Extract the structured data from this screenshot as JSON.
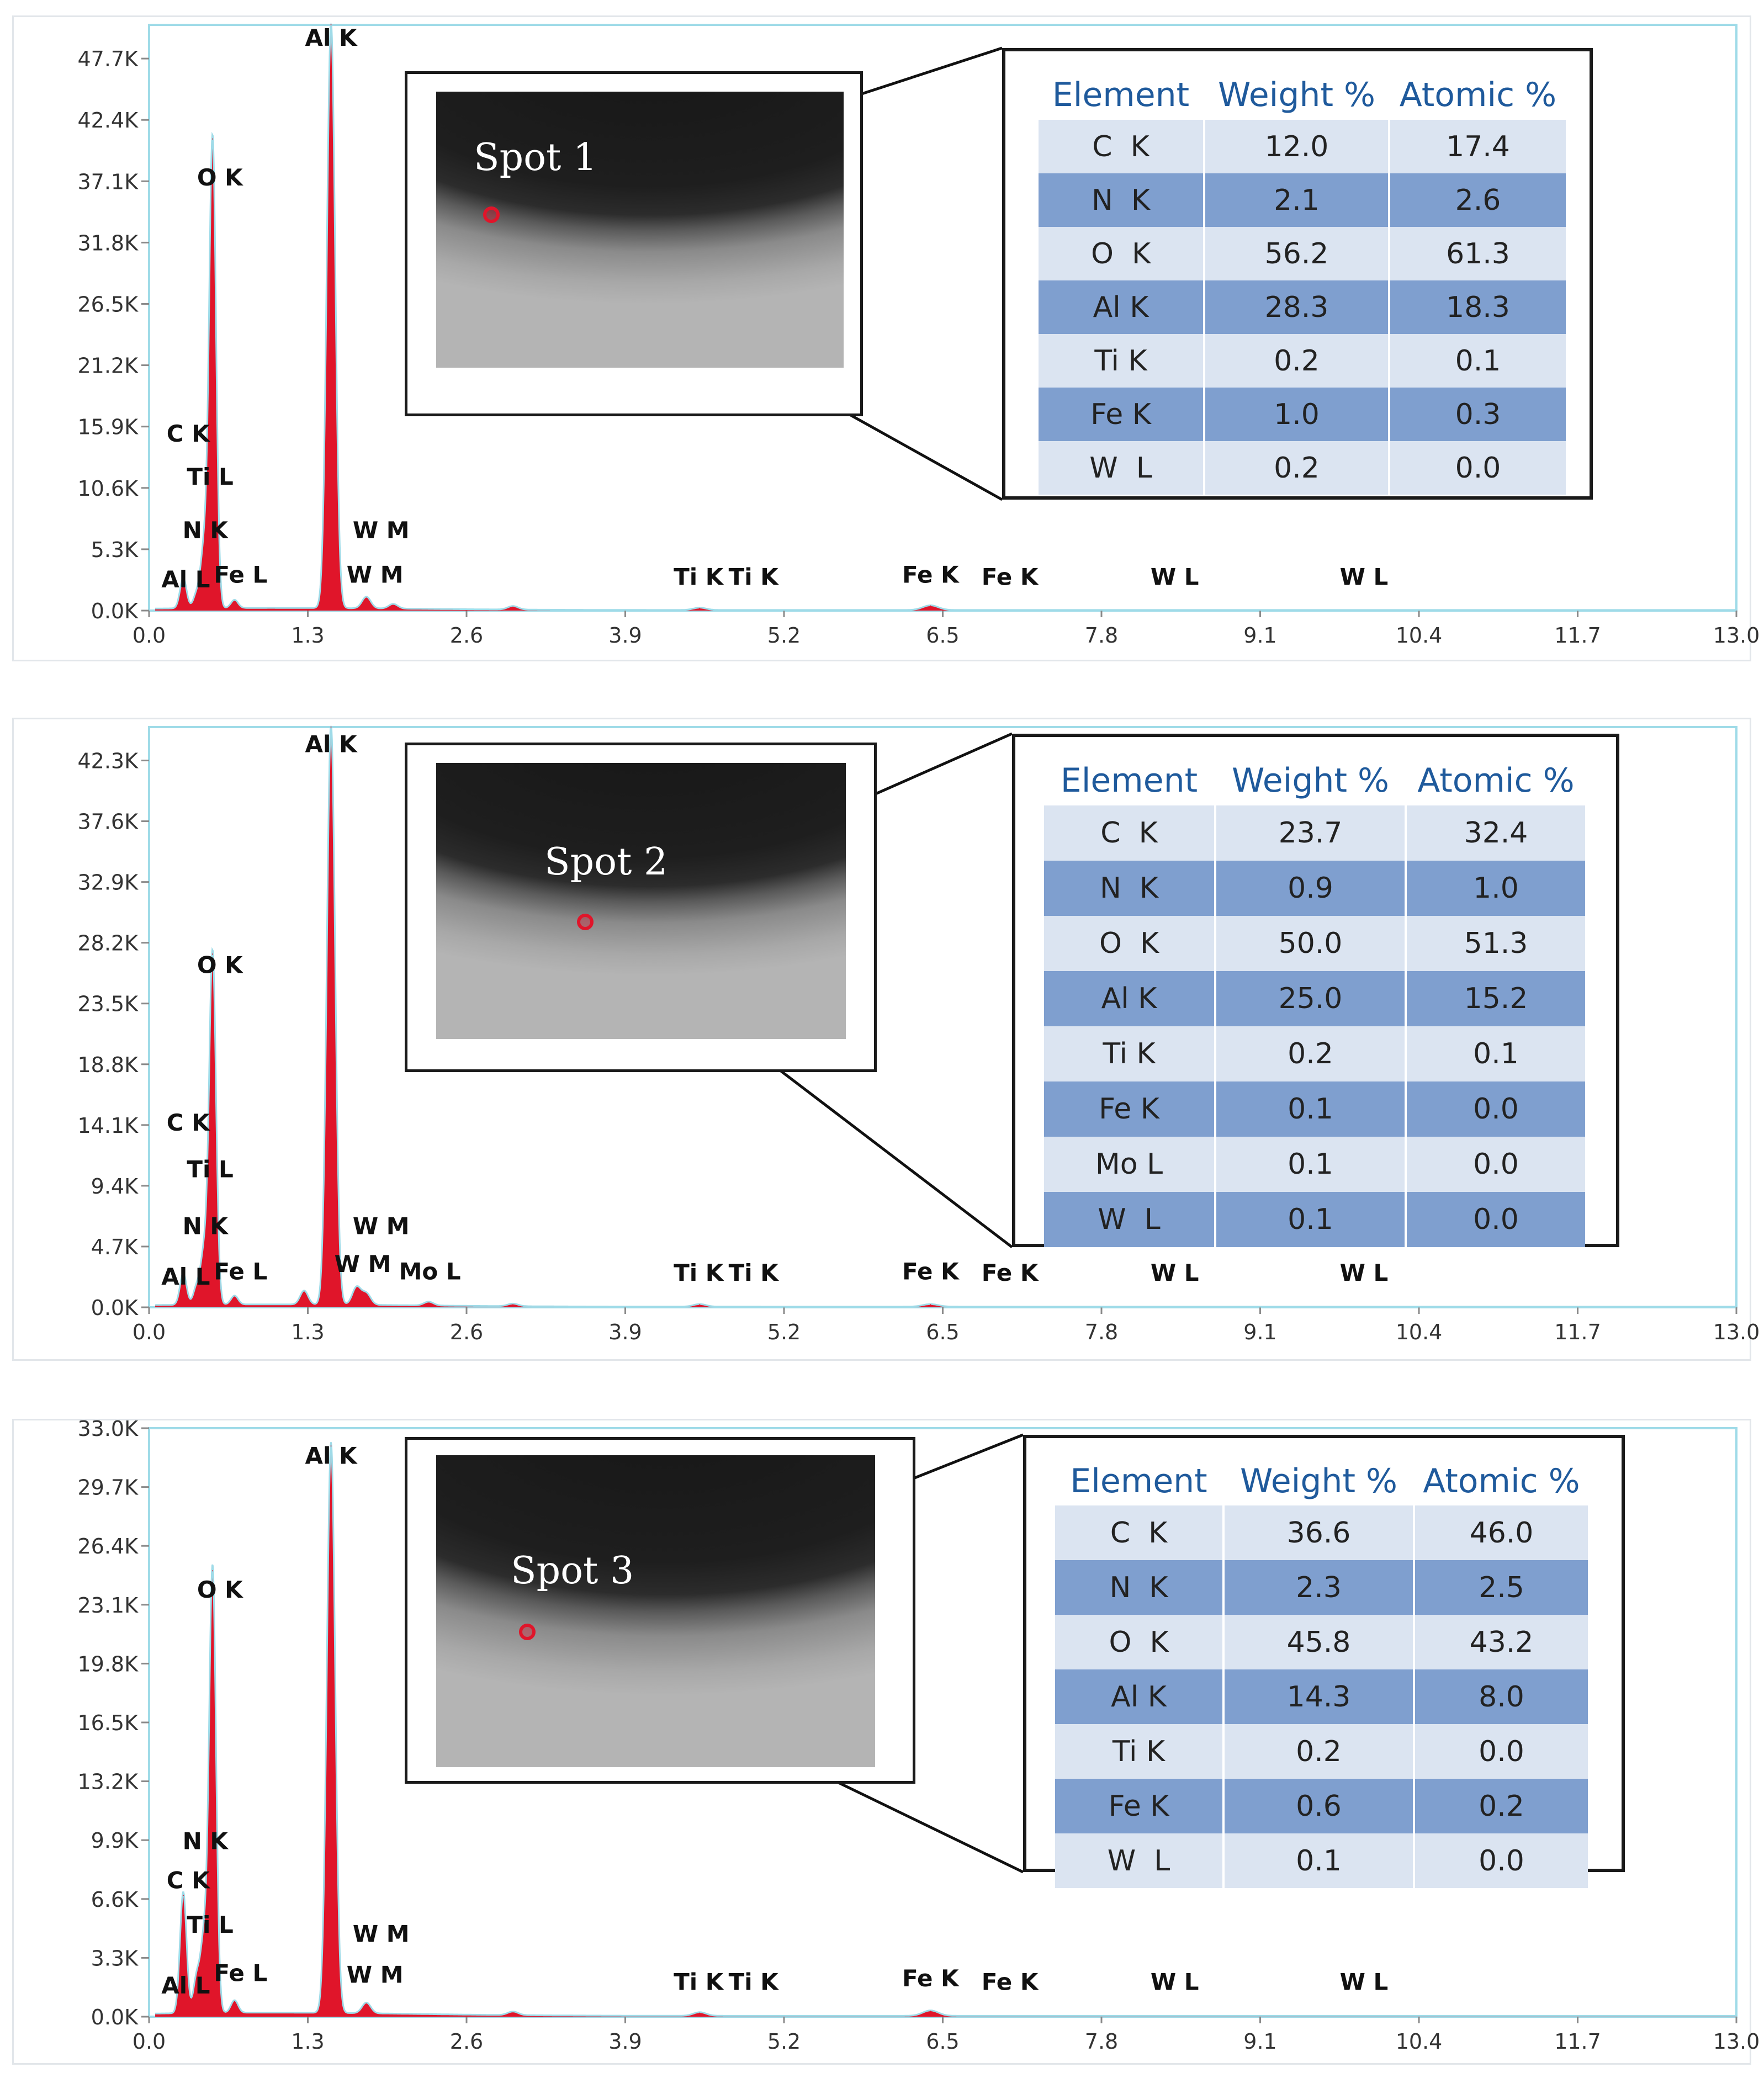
{
  "chart_data": [
    {
      "type": "spectrum",
      "xlim": [
        0.0,
        13.0
      ],
      "ylim": [
        0,
        50.3
      ],
      "x_ticks": [
        "0.0",
        "1.3",
        "2.6",
        "3.9",
        "5.2",
        "6.5",
        "7.8",
        "9.1",
        "10.4",
        "11.7",
        "13.0"
      ],
      "y_ticks": [
        "0.0K",
        "5.3K",
        "10.6K",
        "15.9K",
        "21.2K",
        "26.5K",
        "31.8K",
        "37.1K",
        "42.4K",
        "47.7K"
      ],
      "peaks": [
        {
          "x": 0.28,
          "y": 2.6
        },
        {
          "x": 0.39,
          "y": 1.2
        },
        {
          "x": 0.45,
          "y": 5.0
        },
        {
          "x": 0.52,
          "y": 40.5
        },
        {
          "x": 0.7,
          "y": 0.7
        },
        {
          "x": 1.49,
          "y": 50.3
        },
        {
          "x": 1.78,
          "y": 1.0
        },
        {
          "x": 2.0,
          "y": 0.4
        },
        {
          "x": 2.98,
          "y": 0.3
        },
        {
          "x": 4.51,
          "y": 0.2
        },
        {
          "x": 6.4,
          "y": 0.4
        }
      ],
      "peak_labels": [
        {
          "text": "Al K",
          "x": 1.49,
          "y": 48.5
        },
        {
          "text": "O K",
          "x": 0.58,
          "y": 36.5
        },
        {
          "text": "C K",
          "x": 0.32,
          "y": 14.5
        },
        {
          "text": "Ti L",
          "x": 0.5,
          "y": 10.8
        },
        {
          "text": "N K",
          "x": 0.46,
          "y": 6.2
        },
        {
          "text": "Al L",
          "x": 0.3,
          "y": 2.0
        },
        {
          "text": "Fe L",
          "x": 0.75,
          "y": 2.4
        },
        {
          "text": "W M",
          "x": 1.9,
          "y": 6.2
        },
        {
          "text": "W M",
          "x": 1.85,
          "y": 2.4
        },
        {
          "text": "Ti K",
          "x": 4.5,
          "y": 2.2
        },
        {
          "text": "Ti K",
          "x": 4.95,
          "y": 2.2
        },
        {
          "text": "Fe K",
          "x": 6.4,
          "y": 2.4
        },
        {
          "text": "Fe K",
          "x": 7.05,
          "y": 2.2
        },
        {
          "text": "W L",
          "x": 8.4,
          "y": 2.2
        },
        {
          "text": "W L",
          "x": 9.95,
          "y": 2.2
        }
      ],
      "spot_label": "Spot 1",
      "table": {
        "headers": [
          "Element",
          "Weight %",
          "Atomic %"
        ],
        "rows": [
          [
            "C  K",
            "12.0",
            "17.4"
          ],
          [
            "N  K",
            "2.1",
            "2.6"
          ],
          [
            "O  K",
            "56.2",
            "61.3"
          ],
          [
            "Al K",
            "28.3",
            "18.3"
          ],
          [
            "Ti K",
            "0.2",
            "0.1"
          ],
          [
            "Fe K",
            "1.0",
            "0.3"
          ],
          [
            "W  L",
            "0.2",
            "0.0"
          ]
        ]
      }
    },
    {
      "type": "spectrum",
      "xlim": [
        0.0,
        13.0
      ],
      "ylim": [
        0,
        46.0
      ],
      "x_ticks": [
        "0.0",
        "1.3",
        "2.6",
        "3.9",
        "5.2",
        "6.5",
        "7.8",
        "9.1",
        "10.4",
        "11.7",
        "13.0"
      ],
      "y_ticks": [
        "0.0K",
        "4.7K",
        "9.4K",
        "14.1K",
        "18.8K",
        "23.5K",
        "28.2K",
        "32.9K",
        "37.6K",
        "42.3K"
      ],
      "peaks": [
        {
          "x": 0.28,
          "y": 2.5
        },
        {
          "x": 0.39,
          "y": 1.4
        },
        {
          "x": 0.45,
          "y": 4.0
        },
        {
          "x": 0.52,
          "y": 28.0
        },
        {
          "x": 0.7,
          "y": 0.7
        },
        {
          "x": 1.27,
          "y": 1.1
        },
        {
          "x": 1.49,
          "y": 46.0
        },
        {
          "x": 1.7,
          "y": 1.4
        },
        {
          "x": 1.78,
          "y": 0.9
        },
        {
          "x": 2.29,
          "y": 0.3
        },
        {
          "x": 2.98,
          "y": 0.2
        },
        {
          "x": 4.51,
          "y": 0.2
        },
        {
          "x": 6.4,
          "y": 0.2
        }
      ],
      "peak_labels": [
        {
          "text": "Al K",
          "x": 1.49,
          "y": 44.0
        },
        {
          "text": "O K",
          "x": 0.58,
          "y": 26.5
        },
        {
          "text": "C K",
          "x": 0.32,
          "y": 14.0
        },
        {
          "text": "Ti L",
          "x": 0.5,
          "y": 10.3
        },
        {
          "text": "N K",
          "x": 0.46,
          "y": 5.8
        },
        {
          "text": "Al L",
          "x": 0.3,
          "y": 1.8
        },
        {
          "text": "Fe L",
          "x": 0.75,
          "y": 2.2
        },
        {
          "text": "W M",
          "x": 1.9,
          "y": 5.8
        },
        {
          "text": "W M",
          "x": 1.75,
          "y": 2.8
        },
        {
          "text": "Mo L",
          "x": 2.3,
          "y": 2.2
        },
        {
          "text": "Ti K",
          "x": 4.5,
          "y": 2.1
        },
        {
          "text": "Ti K",
          "x": 4.95,
          "y": 2.1
        },
        {
          "text": "Fe K",
          "x": 6.4,
          "y": 2.2
        },
        {
          "text": "Fe K",
          "x": 7.05,
          "y": 2.1
        },
        {
          "text": "W L",
          "x": 8.4,
          "y": 2.1
        },
        {
          "text": "W L",
          "x": 9.95,
          "y": 2.1
        }
      ],
      "spot_label": "Spot 2",
      "table": {
        "headers": [
          "Element",
          "Weight %",
          "Atomic %"
        ],
        "rows": [
          [
            "C  K",
            "23.7",
            "32.4"
          ],
          [
            "N  K",
            "0.9",
            "1.0"
          ],
          [
            "O  K",
            "50.0",
            "51.3"
          ],
          [
            "Al K",
            "25.0",
            "15.2"
          ],
          [
            "Ti K",
            "0.2",
            "0.1"
          ],
          [
            "Fe K",
            "0.1",
            "0.0"
          ],
          [
            "Mo L",
            "0.1",
            "0.0"
          ],
          [
            "W  L",
            "0.1",
            "0.0"
          ]
        ]
      }
    },
    {
      "type": "spectrum",
      "xlim": [
        0.0,
        13.0
      ],
      "ylim": [
        0,
        33.0
      ],
      "x_ticks": [
        "0.0",
        "1.3",
        "2.6",
        "3.9",
        "5.2",
        "6.5",
        "7.8",
        "9.1",
        "10.4",
        "11.7",
        "13.0"
      ],
      "y_ticks": [
        "0.0K",
        "3.3K",
        "6.6K",
        "9.9K",
        "13.2K",
        "16.5K",
        "19.8K",
        "23.1K",
        "26.4K",
        "29.7K",
        "33.0K"
      ],
      "peaks": [
        {
          "x": 0.28,
          "y": 6.8
        },
        {
          "x": 0.39,
          "y": 2.0
        },
        {
          "x": 0.45,
          "y": 4.0
        },
        {
          "x": 0.52,
          "y": 25.0
        },
        {
          "x": 0.7,
          "y": 0.7
        },
        {
          "x": 1.49,
          "y": 32.0
        },
        {
          "x": 1.78,
          "y": 0.6
        },
        {
          "x": 2.98,
          "y": 0.2
        },
        {
          "x": 4.51,
          "y": 0.2
        },
        {
          "x": 6.4,
          "y": 0.3
        }
      ],
      "peak_labels": [
        {
          "text": "Al K",
          "x": 1.49,
          "y": 31.0
        },
        {
          "text": "O K",
          "x": 0.58,
          "y": 23.5
        },
        {
          "text": "N K",
          "x": 0.46,
          "y": 9.4
        },
        {
          "text": "C K",
          "x": 0.32,
          "y": 7.2
        },
        {
          "text": "Ti L",
          "x": 0.5,
          "y": 4.7
        },
        {
          "text": "Al L",
          "x": 0.3,
          "y": 1.3
        },
        {
          "text": "Fe L",
          "x": 0.75,
          "y": 2.0
        },
        {
          "text": "W M",
          "x": 1.9,
          "y": 4.2
        },
        {
          "text": "W M",
          "x": 1.85,
          "y": 1.9
        },
        {
          "text": "Ti K",
          "x": 4.5,
          "y": 1.5
        },
        {
          "text": "Ti K",
          "x": 4.95,
          "y": 1.5
        },
        {
          "text": "Fe K",
          "x": 6.4,
          "y": 1.7
        },
        {
          "text": "Fe K",
          "x": 7.05,
          "y": 1.5
        },
        {
          "text": "W L",
          "x": 8.4,
          "y": 1.5
        },
        {
          "text": "W L",
          "x": 9.95,
          "y": 1.5
        }
      ],
      "spot_label": "Spot 3",
      "table": {
        "headers": [
          "Element",
          "Weight %",
          "Atomic %"
        ],
        "rows": [
          [
            "C  K",
            "36.6",
            "46.0"
          ],
          [
            "N  K",
            "2.3",
            "2.5"
          ],
          [
            "O  K",
            "45.8",
            "43.2"
          ],
          [
            "Al K",
            "14.3",
            "8.0"
          ],
          [
            "Ti K",
            "0.2",
            "0.0"
          ],
          [
            "Fe K",
            "0.6",
            "0.2"
          ],
          [
            "W  L",
            "0.1",
            "0.0"
          ]
        ]
      }
    }
  ],
  "colors": {
    "spectrum_fill": "#e0152a",
    "spectrum_line": "#9fdbe8",
    "axis": "#9fdbe8",
    "table_header_text": "#1f5a9c",
    "row_light": "#dbe4f1",
    "row_dark": "#7f9fcf"
  }
}
